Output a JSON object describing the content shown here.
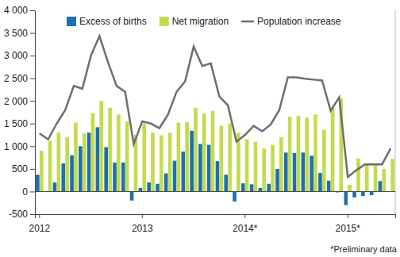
{
  "chart_data": {
    "type": "bar",
    "categories": [
      "2012",
      null,
      null,
      null,
      null,
      null,
      null,
      null,
      null,
      null,
      null,
      null,
      "2013",
      null,
      null,
      null,
      null,
      null,
      null,
      null,
      null,
      null,
      null,
      null,
      "2014*",
      null,
      null,
      null,
      null,
      null,
      null,
      null,
      null,
      null,
      null,
      null,
      "2015*",
      null,
      null,
      null,
      null,
      null
    ],
    "series": [
      {
        "name": "Excess of births",
        "color": "#1f6fae",
        "type": "bar",
        "values": [
          370,
          0,
          200,
          620,
          800,
          1000,
          1300,
          1420,
          980,
          640,
          640,
          -200,
          80,
          200,
          170,
          400,
          680,
          880,
          1340,
          1050,
          1030,
          670,
          370,
          -220,
          180,
          160,
          80,
          170,
          500,
          860,
          850,
          860,
          790,
          410,
          240,
          -20,
          -300,
          -130,
          -100,
          -80,
          230,
          0
        ]
      },
      {
        "name": "Net migration",
        "color": "#c3dc4f",
        "type": "bar",
        "values": [
          900,
          1120,
          1300,
          1200,
          1520,
          1280,
          1730,
          2000,
          1850,
          1700,
          1550,
          1250,
          1500,
          1300,
          1240,
          1300,
          1520,
          1530,
          1850,
          1720,
          1780,
          1450,
          1500,
          1300,
          1150,
          1100,
          950,
          1030,
          1200,
          1650,
          1670,
          1630,
          1700,
          1360,
          1850,
          2050,
          150,
          730,
          600,
          620,
          500,
          720
        ]
      },
      {
        "name": "Population increase",
        "color": "#6d6e71",
        "type": "line",
        "values": [
          1280,
          1150,
          1500,
          1800,
          2330,
          2270,
          3000,
          3430,
          2850,
          2330,
          2200,
          1050,
          1550,
          1500,
          1400,
          1700,
          2200,
          2430,
          3200,
          2770,
          2830,
          2100,
          1900,
          1100,
          1250,
          1450,
          1330,
          1480,
          1800,
          2520,
          2520,
          2490,
          2470,
          2450,
          1780,
          2080,
          320,
          470,
          600,
          600,
          600,
          950
        ]
      }
    ],
    "ylim": [
      -500,
      4000
    ],
    "yticks": [
      -500,
      0,
      500,
      {
        "value": 1000,
        "label": "1 000"
      },
      {
        "value": 1500,
        "label": "1 500"
      },
      {
        "value": 2000,
        "label": "2 000"
      },
      {
        "value": 2500,
        "label": "2 500"
      },
      {
        "value": 3000,
        "label": "3 000"
      },
      {
        "value": 3500,
        "label": "3 500"
      },
      {
        "value": 4000,
        "label": "4 000"
      }
    ],
    "grid": false,
    "legend": "top",
    "note": "*Preliminary data"
  }
}
